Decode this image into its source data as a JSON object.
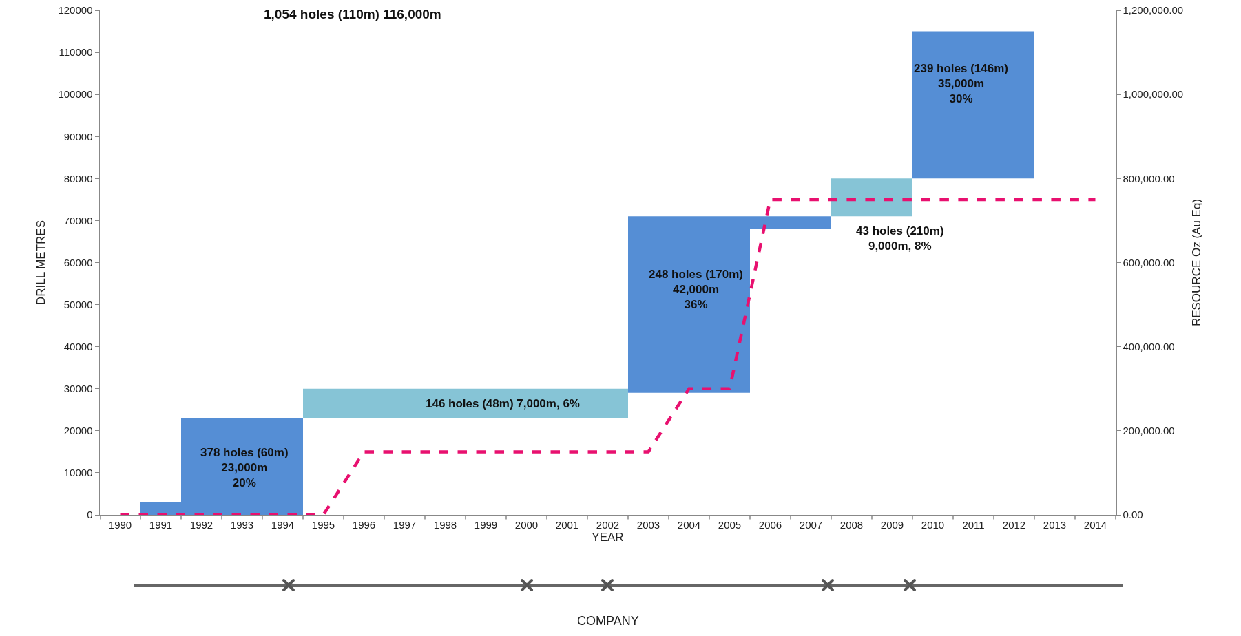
{
  "chart_data": {
    "type": "bar",
    "title": "1,054 holes (110m) 116,000m",
    "xlabel": "YEAR",
    "ylabel": "DRILL METRES",
    "y2label": "RESOURCE Oz (Au Eq)",
    "categories": [
      "1990",
      "1991",
      "1992",
      "1993",
      "1994",
      "1995",
      "1996",
      "1997",
      "1998",
      "1999",
      "2000",
      "2001",
      "2002",
      "2003",
      "2004",
      "2005",
      "2006",
      "2007",
      "2008",
      "2009",
      "2010",
      "2011",
      "2012",
      "2013",
      "2014"
    ],
    "series": [
      {
        "base": [
          null,
          0,
          0,
          0,
          0,
          23000,
          23000,
          23000,
          23000,
          23000,
          23000,
          23000,
          23000,
          29000,
          29000,
          29000,
          68000,
          68000,
          71000,
          71000,
          80000,
          80000,
          80000,
          null,
          null
        ],
        "values": [
          null,
          3000,
          23000,
          23000,
          23000,
          7000,
          7000,
          7000,
          7000,
          7000,
          7000,
          7000,
          7000,
          42000,
          42000,
          42000,
          3000,
          3000,
          9000,
          9000,
          35000,
          35000,
          35000,
          null,
          null
        ],
        "colors": [
          "#558ed5",
          "#558ed5",
          "#558ed5",
          "#558ed5",
          "#558ed5",
          "#86c4d6",
          "#86c4d6",
          "#86c4d6",
          "#86c4d6",
          "#86c4d6",
          "#86c4d6",
          "#86c4d6",
          "#86c4d6",
          "#558ed5",
          "#558ed5",
          "#558ed5",
          "#558ed5",
          "#558ed5",
          "#86c4d6",
          "#86c4d6",
          "#558ed5",
          "#558ed5",
          "#558ed5",
          "#558ed5",
          "#558ed5"
        ]
      },
      {
        "type": "line",
        "axis": "y2",
        "color": "#e8106f",
        "line_style": "dashed",
        "marker": "none",
        "values": [
          0,
          0,
          0,
          0,
          0,
          0,
          150000,
          150000,
          150000,
          150000,
          150000,
          150000,
          150000,
          150000,
          300000,
          300000,
          750000,
          750000,
          750000,
          750000,
          750000,
          750000,
          750000,
          750000,
          750000
        ]
      }
    ],
    "ylim": [
      0,
      120000
    ],
    "yticks": [
      0,
      10000,
      20000,
      30000,
      40000,
      50000,
      60000,
      70000,
      80000,
      90000,
      100000,
      110000,
      120000
    ],
    "y2lim": [
      0,
      1200000
    ],
    "y2ticks": [
      {
        "value": 0,
        "label": "0.00"
      },
      {
        "value": 200000,
        "label": "200,000.00"
      },
      {
        "value": 400000,
        "label": "400,000.00"
      },
      {
        "value": 600000,
        "label": "600,000.00"
      },
      {
        "value": 800000,
        "label": "800,000.00"
      },
      {
        "value": 1000000,
        "label": "1,000,000.00"
      },
      {
        "value": 1200000,
        "label": "1,200,000.00"
      }
    ],
    "grid": false,
    "annotations": [
      "378 holes (60m)\n23,000m\n20%",
      "146 holes (48m) 7,000m, 6%",
      "248 holes (170m)\n42,000m\n36%",
      "43 holes (210m)\n9,000m, 8%",
      "239 holes (146m)\n35,000m\n30%",
      "COMPANY"
    ]
  }
}
